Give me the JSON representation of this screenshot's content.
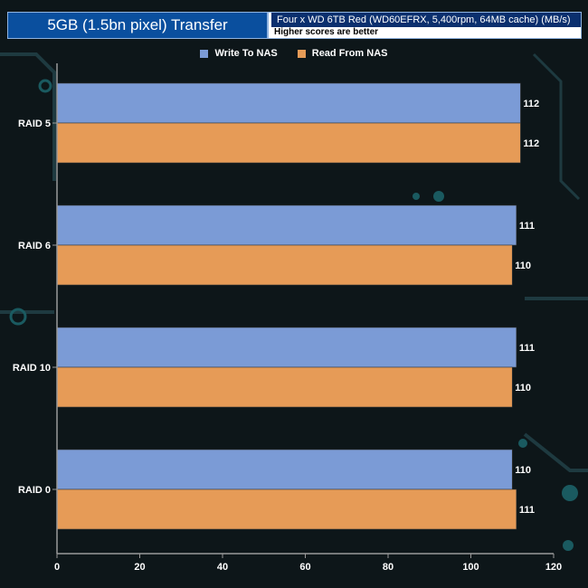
{
  "chart_data": {
    "type": "bar",
    "orientation": "horizontal",
    "title": "5GB (1.5bn pixel) Transfer",
    "subtitle": "Four x WD 6TB Red (WD60EFRX, 5,400rpm, 64MB cache) (MB/s)",
    "note": "Higher scores are better",
    "categories": [
      "RAID 5",
      "RAID 6",
      "RAID 10",
      "RAID 0"
    ],
    "series": [
      {
        "name": "Write To NAS",
        "color": "#7b9bd6",
        "values": [
          112,
          111,
          111,
          110
        ]
      },
      {
        "name": "Read From NAS",
        "color": "#e69b57",
        "values": [
          112,
          110,
          110,
          111
        ]
      }
    ],
    "xlim": [
      0,
      120
    ],
    "xticks": [
      0,
      20,
      40,
      60,
      80,
      100,
      120
    ],
    "grid": false,
    "legend_position": "top"
  },
  "colors": {
    "title_bg": "#0a4f9e",
    "axis": "#9a9a9a",
    "label_text": "#ffffff"
  }
}
